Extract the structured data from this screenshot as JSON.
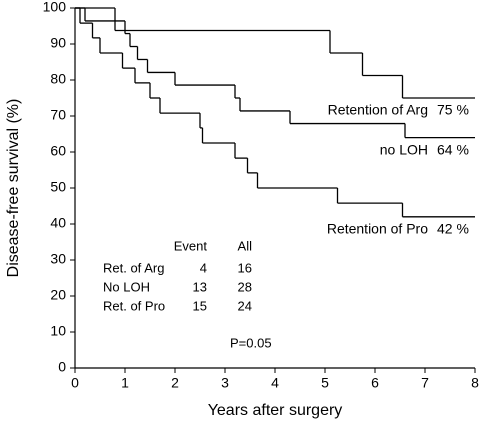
{
  "chart_data": {
    "type": "line",
    "step": true,
    "xlabel": "Years after surgery",
    "ylabel": "Disease-free survival (%)",
    "xlim": [
      0,
      8
    ],
    "xticks": [
      0,
      1,
      2,
      3,
      4,
      5,
      6,
      7,
      8
    ],
    "ylim": [
      0,
      100
    ],
    "yticks": [
      0,
      10,
      20,
      30,
      40,
      50,
      60,
      70,
      80,
      90,
      100
    ],
    "series": [
      {
        "name": "Retention of Arg",
        "color": "#000000",
        "x": [
          0,
          0.8,
          5.1,
          5.75,
          6.55
        ],
        "values": [
          100,
          93.75,
          87.5,
          81.25,
          75
        ],
        "value_labels": [
          null,
          null,
          null,
          null,
          "75 %"
        ]
      },
      {
        "name": "no LOH",
        "color": "#000000",
        "x": [
          0,
          0.2,
          1.0,
          1.1,
          1.25,
          1.45,
          2.0,
          3.2,
          3.3,
          4.3,
          6.6
        ],
        "values": [
          100,
          96.4,
          92.9,
          89.3,
          85.7,
          82.1,
          78.6,
          75,
          71.4,
          67.9,
          64
        ],
        "value_labels": [
          null,
          null,
          null,
          null,
          null,
          null,
          null,
          null,
          null,
          null,
          "64 %"
        ]
      },
      {
        "name": "Retention of Pro",
        "color": "#000000",
        "x": [
          0,
          0.1,
          0.35,
          0.5,
          0.95,
          1.2,
          1.5,
          1.7,
          2.5,
          2.55,
          3.2,
          3.45,
          3.65,
          5.25,
          6.55
        ],
        "values": [
          100,
          95.8,
          91.7,
          87.5,
          83.3,
          79.2,
          75,
          70.8,
          66.7,
          62.5,
          58.3,
          54.2,
          50,
          45.8,
          42
        ],
        "value_labels": [
          null,
          null,
          null,
          null,
          null,
          null,
          null,
          null,
          null,
          null,
          null,
          null,
          null,
          null,
          "42 %"
        ]
      }
    ],
    "table": {
      "columns": [
        "Event",
        "All"
      ],
      "rows": [
        [
          "Ret. of Arg",
          4,
          16
        ],
        [
          "No LOH",
          13,
          28
        ],
        [
          "Ret. of Pro",
          15,
          24
        ]
      ]
    },
    "annotation": "P=0.05"
  }
}
